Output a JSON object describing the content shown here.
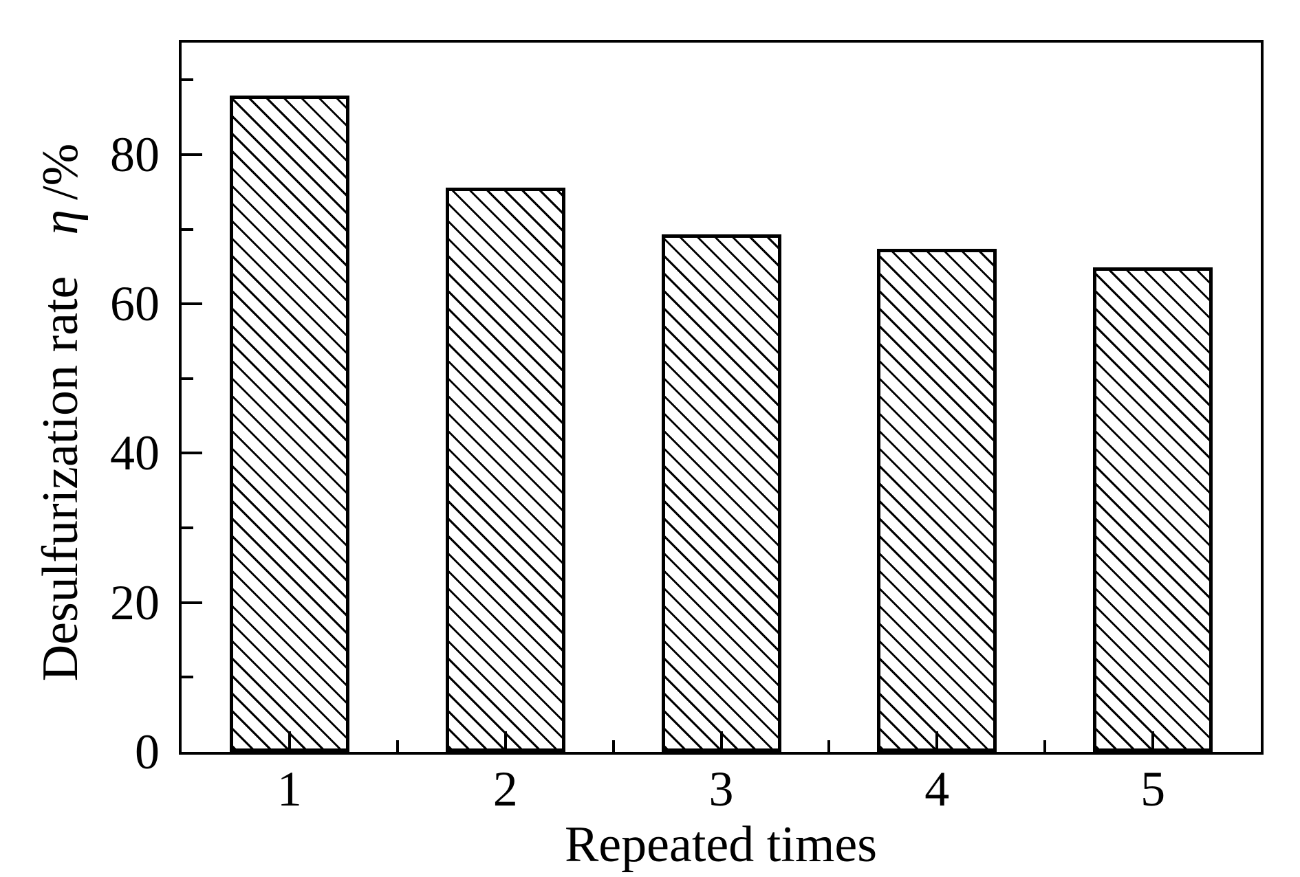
{
  "figure": {
    "background": "#ffffff",
    "ink_color": "#000000"
  },
  "chart_data": {
    "type": "bar",
    "title": "",
    "categories": [
      "1",
      "2",
      "3",
      "4",
      "5"
    ],
    "values": [
      87.9,
      75.6,
      69.3,
      67.4,
      64.9
    ],
    "xlabel": "Repeated times",
    "ylabel_main": "Desulfurization rate",
    "ylabel_symbol": "η",
    "ylabel_unit": "/%",
    "ylabel_full": "Desulfurization rate η /%",
    "ylim": [
      0,
      95
    ],
    "yticks_major": [
      0,
      20,
      40,
      60,
      80
    ],
    "yticks_minor": [
      10,
      30,
      50,
      70,
      90
    ],
    "grid": false,
    "legend": "none",
    "bar_style": {
      "fill": "hatch-diagonal-backslash",
      "hatch_color": "#000000",
      "outline_color": "#000000",
      "background": "#ffffff"
    },
    "axis_ticks_direction": "in"
  }
}
